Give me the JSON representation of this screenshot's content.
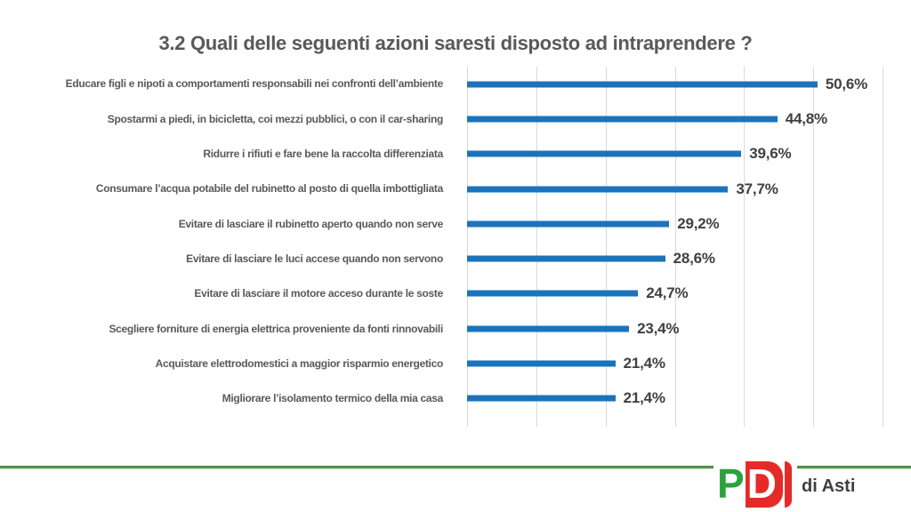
{
  "title": "3.2 Quali delle seguenti azioni saresti disposto ad intraprendere ?",
  "chart_data": {
    "type": "bar",
    "orientation": "horizontal",
    "title": "3.2 Quali delle seguenti azioni saresti disposto ad intraprendere ?",
    "categories": [
      "Educare figli e nipoti a comportamenti responsabili nei confronti dell’ambiente",
      "Spostarmi a piedi, in bicicletta, coi mezzi pubblici, o con il car-sharing",
      "Ridurre i rifiuti e fare bene la raccolta differenziata",
      "Consumare l’acqua potabile del rubinetto al posto di quella imbottigliata",
      "Evitare di lasciare il rubinetto aperto quando non serve",
      "Evitare di lasciare le luci accese quando non servono",
      "Evitare di lasciare il motore acceso durante le soste",
      "Scegliere forniture di energia elettrica proveniente da fonti rinnovabili",
      "Acquistare elettrodomestici a maggior risparmio energetico",
      "Migliorare l’isolamento termico della mia casa"
    ],
    "values": [
      50.6,
      44.8,
      39.6,
      37.7,
      29.2,
      28.6,
      24.7,
      23.4,
      21.4,
      21.4
    ],
    "value_labels": [
      "50,6%",
      "44,8%",
      "39,6%",
      "37,7%",
      "29,2%",
      "28,6%",
      "24,7%",
      "23,4%",
      "21,4%",
      "21,4%"
    ],
    "xlim": [
      0,
      60
    ],
    "gridline_interval": 10,
    "grid": true,
    "legend": false,
    "bar_color": "#1B74BB",
    "category_label_color": "#595959",
    "value_label_color": "#404040",
    "gridline_color": "#D9D9D9"
  },
  "footer": {
    "logo_p": "P",
    "logo_d": "D",
    "label": "di Asti",
    "line_color": "#79B765",
    "line_edge_color": "#2F7423",
    "logo_green": "#2BA23C",
    "logo_red": "#E52B28"
  }
}
